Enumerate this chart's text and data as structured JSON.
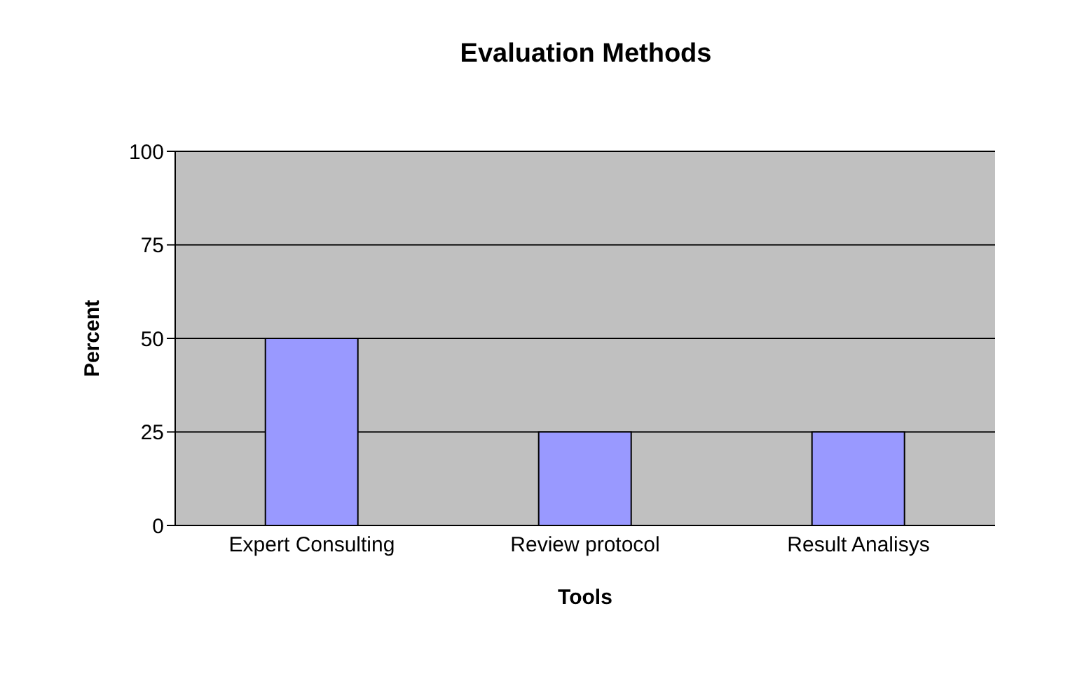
{
  "chart_data": {
    "type": "bar",
    "title": "Evaluation Methods",
    "xlabel": "Tools",
    "ylabel": "Percent",
    "categories": [
      "Expert Consulting",
      "Review protocol",
      "Result Analisys"
    ],
    "values": [
      50,
      25,
      25
    ],
    "color": "#9999ff",
    "ylim": [
      0,
      100
    ],
    "yticks": [
      0,
      25,
      50,
      75,
      100
    ],
    "grid": "y"
  }
}
